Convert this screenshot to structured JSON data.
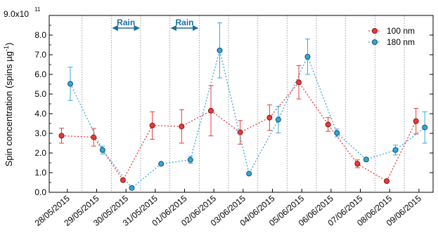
{
  "chart_data": {
    "type": "scatter",
    "title": "",
    "xlabel": "",
    "ylabel": "Spin concentration (spins µg",
    "ylabel_superscript": "-1",
    "ylabel_close": ")",
    "ylim": [
      0,
      9.0
    ],
    "y_ticks": [
      "0.0",
      "1.0",
      "2.0",
      "3.0",
      "4.0",
      "5.0",
      "6.0",
      "7.0",
      "8.0"
    ],
    "y_top_tick_base": "9.0x10",
    "y_top_tick_exponent": "11",
    "y_multiplier": "1e11",
    "x_categories": [
      "28/05/2015",
      "29/05/2015",
      "30/05/2015",
      "31/05/2015",
      "01/06/2015",
      "02/06/2015",
      "03/06/2015",
      "04/06/2015",
      "05/06/2015",
      "06/06/2015",
      "07/06/2015",
      "08/06/2015",
      "09/06/2015"
    ],
    "legend_position": "top-right",
    "grid": "vertical dotted separators between dates",
    "annotations": [
      {
        "label": "Rain",
        "from": 2,
        "to": 3,
        "color": "#1a6e9e"
      },
      {
        "label": "Rain",
        "from": 4,
        "to": 5,
        "color": "#1a6e9e"
      }
    ],
    "series": [
      {
        "name": "100 nm",
        "color": "#e83a3a",
        "edge_color": "#8c1010",
        "points": [
          {
            "x": 0.3,
            "y": 2.88,
            "err": 0.38
          },
          {
            "x": 1.4,
            "y": 2.8,
            "err": 0.45
          },
          {
            "x": 2.4,
            "y": 0.62,
            "err": 0.08
          },
          {
            "x": 3.4,
            "y": 3.4,
            "err": 0.7
          },
          {
            "x": 4.4,
            "y": 3.35,
            "err": 0.85
          },
          {
            "x": 5.4,
            "y": 4.15,
            "err": 1.28
          },
          {
            "x": 6.4,
            "y": 3.05,
            "err": 0.6
          },
          {
            "x": 7.4,
            "y": 3.8,
            "err": 0.65
          },
          {
            "x": 8.4,
            "y": 5.6,
            "err": 0.85
          },
          {
            "x": 9.4,
            "y": 3.45,
            "err": 0.35
          },
          {
            "x": 10.4,
            "y": 1.45,
            "err": 0.2
          },
          {
            "x": 11.4,
            "y": 0.57,
            "err": 0.05
          },
          {
            "x": 12.4,
            "y": 3.62,
            "err": 0.65
          }
        ]
      },
      {
        "name": "180 nm",
        "color": "#3aa6d6",
        "edge_color": "#0e4f73",
        "points": [
          {
            "x": 0.6,
            "y": 5.52,
            "err": 0.85
          },
          {
            "x": 1.7,
            "y": 2.15,
            "err": 0.2
          },
          {
            "x": 2.7,
            "y": 0.22,
            "err": 0.04
          },
          {
            "x": 3.7,
            "y": 1.45,
            "err": 0.05
          },
          {
            "x": 4.7,
            "y": 1.65,
            "err": 0.18
          },
          {
            "x": 5.7,
            "y": 7.22,
            "err": 1.4
          },
          {
            "x": 6.7,
            "y": 0.95,
            "err": 0.05
          },
          {
            "x": 7.7,
            "y": 3.7,
            "err": 0.68
          },
          {
            "x": 8.7,
            "y": 6.9,
            "err": 0.9
          },
          {
            "x": 9.7,
            "y": 3.02,
            "err": 0.2
          },
          {
            "x": 10.7,
            "y": 1.67,
            "err": 0.08
          },
          {
            "x": 11.7,
            "y": 2.15,
            "err": 0.25
          },
          {
            "x": 12.7,
            "y": 3.3,
            "err": 0.8
          }
        ]
      }
    ]
  }
}
